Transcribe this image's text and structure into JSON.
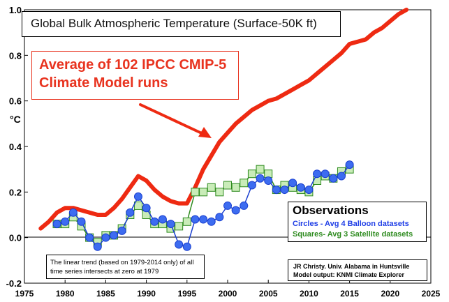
{
  "colors": {
    "model": "#ee2a12",
    "balloon_fill": "#3d6cf0",
    "balloon_line": "#1a3fd0",
    "satellite_fill": "#c9ecb8",
    "satellite_line": "#2e8b1f",
    "arrow": "#ee2a12"
  },
  "labels": {
    "title": "Global Bulk Atmospheric Temperature (Surface-50K ft)",
    "model_callout": "Average of 102 IPCC CMIP-5 Climate Model runs",
    "obs_heading": "Observations",
    "obs_circles": "Circles - Avg 4 Balloon datasets",
    "obs_squares": "Squares- Avg 3 Satellite datasets",
    "trend_note": "The linear trend (based on 1979-2014 only) of all time series intersects at zero at 1979",
    "credit": "JR Christy. Univ. Alabama in Huntsville Model output: KNMI Climate Explorer",
    "ylabel": "°C"
  },
  "chart_data": {
    "type": "line",
    "title": "Global Bulk Atmospheric Temperature (Surface-50K ft)",
    "ylabel": "°C",
    "xlabel": "",
    "xlim": [
      1975,
      2025
    ],
    "ylim": [
      -0.2,
      1.0
    ],
    "x_ticks": [
      1975,
      1980,
      1985,
      1990,
      1995,
      2000,
      2005,
      2010,
      2015,
      2020,
      2025
    ],
    "y_ticks": [
      -0.2,
      0.0,
      0.2,
      0.4,
      0.6,
      0.8,
      1.0
    ],
    "y_tick_labels": [
      "-0.2",
      "0.0",
      "0.2",
      "0.4",
      "0.6",
      "0.8",
      "1.0"
    ],
    "grid": false,
    "legend": "bottom-right",
    "series": [
      {
        "name": "Average of 102 IPCC CMIP-5 Climate Model runs",
        "style": "thick-line",
        "x": [
          1977,
          1978,
          1979,
          1980,
          1981,
          1982,
          1983,
          1984,
          1985,
          1986,
          1987,
          1988,
          1989,
          1990,
          1991,
          1992,
          1993,
          1994,
          1995,
          1996,
          1997,
          1998,
          1999,
          2000,
          2001,
          2002,
          2003,
          2004,
          2005,
          2006,
          2007,
          2008,
          2009,
          2010,
          2011,
          2012,
          2013,
          2014,
          2015,
          2016,
          2017,
          2018,
          2019,
          2020,
          2021,
          2022
        ],
        "y": [
          0.04,
          0.07,
          0.11,
          0.13,
          0.13,
          0.12,
          0.11,
          0.1,
          0.1,
          0.13,
          0.17,
          0.22,
          0.27,
          0.25,
          0.21,
          0.18,
          0.16,
          0.15,
          0.15,
          0.22,
          0.3,
          0.36,
          0.42,
          0.46,
          0.5,
          0.53,
          0.56,
          0.58,
          0.6,
          0.61,
          0.63,
          0.65,
          0.67,
          0.69,
          0.72,
          0.75,
          0.78,
          0.81,
          0.85,
          0.86,
          0.87,
          0.9,
          0.92,
          0.95,
          0.98,
          1.0
        ]
      },
      {
        "name": "Circles - Avg 4 Balloon datasets",
        "style": "circles",
        "x": [
          1979,
          1980,
          1981,
          1982,
          1983,
          1984,
          1985,
          1986,
          1987,
          1988,
          1989,
          1990,
          1991,
          1992,
          1993,
          1994,
          1995,
          1996,
          1997,
          1998,
          1999,
          2000,
          2001,
          2002,
          2003,
          2004,
          2005,
          2006,
          2007,
          2008,
          2009,
          2010,
          2011,
          2012,
          2013,
          2014,
          2015
        ],
        "y": [
          0.06,
          0.07,
          0.11,
          0.07,
          0.0,
          -0.04,
          0.0,
          0.01,
          0.03,
          0.11,
          0.18,
          0.13,
          0.07,
          0.08,
          0.06,
          -0.03,
          -0.04,
          0.08,
          0.08,
          0.07,
          0.09,
          0.14,
          0.12,
          0.14,
          0.23,
          0.26,
          0.25,
          0.21,
          0.21,
          0.24,
          0.22,
          0.21,
          0.28,
          0.28,
          0.26,
          0.27,
          0.32
        ]
      },
      {
        "name": "Squares- Avg 3 Satellite datasets",
        "style": "squares",
        "x": [
          1979,
          1980,
          1981,
          1982,
          1983,
          1984,
          1985,
          1986,
          1987,
          1988,
          1989,
          1990,
          1991,
          1992,
          1993,
          1994,
          1995,
          1996,
          1997,
          1998,
          1999,
          2000,
          2001,
          2002,
          2003,
          2004,
          2005,
          2006,
          2007,
          2008,
          2009,
          2010,
          2011,
          2012,
          2013,
          2014,
          2015
        ],
        "y": [
          0.06,
          0.06,
          0.09,
          0.05,
          0.0,
          -0.02,
          0.01,
          0.01,
          0.04,
          0.1,
          0.14,
          0.1,
          0.06,
          0.06,
          0.04,
          0.05,
          0.07,
          0.2,
          0.2,
          0.22,
          0.2,
          0.23,
          0.22,
          0.24,
          0.28,
          0.3,
          0.28,
          0.21,
          0.23,
          0.22,
          0.21,
          0.2,
          0.25,
          0.27,
          0.26,
          0.29,
          0.3
        ]
      }
    ]
  }
}
